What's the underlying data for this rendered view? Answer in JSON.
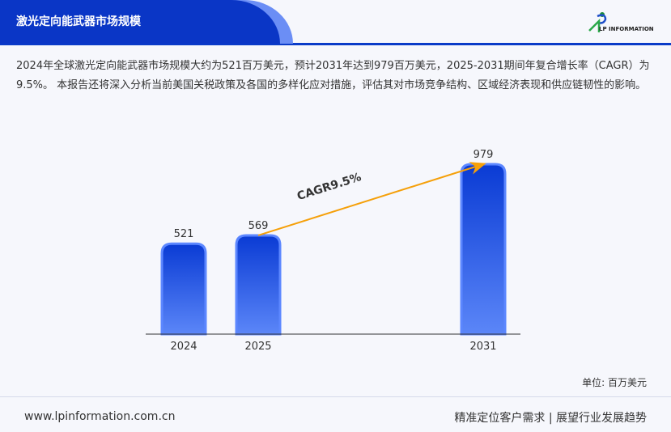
{
  "header": {
    "title": "激光定向能武器市场规模",
    "logo_text": "LP INFORMATION"
  },
  "description": "2024年全球激光定向能武器市场规模大约为521百万美元，预计2031年达到979百万美元，2025-2031期间年复合增长率（CAGR）为9.5%。 本报告还将深入分析当前美国关税政策及各国的多样化应对措施，评估其对市场竞争结构、区域经济表现和供应链韧性的影响。",
  "chart_data": {
    "type": "bar",
    "categories": [
      "2024",
      "2025",
      "2031"
    ],
    "values": [
      521,
      569,
      979
    ],
    "data_labels": [
      "521",
      "569",
      "979"
    ],
    "annotation": "CAGR9.5%",
    "ylim": [
      0,
      979
    ],
    "grid": false,
    "colors": {
      "bar_top": "#0a3bd4",
      "bar_bottom": "#5b86f8",
      "bar_border": "#5c87ff",
      "arrow": "#f5a00a"
    }
  },
  "unit_label": "单位: 百万美元",
  "footer": {
    "website": "www.lpinformation.com.cn",
    "slogan": "精准定位客户需求 | 展望行业发展趋势"
  }
}
